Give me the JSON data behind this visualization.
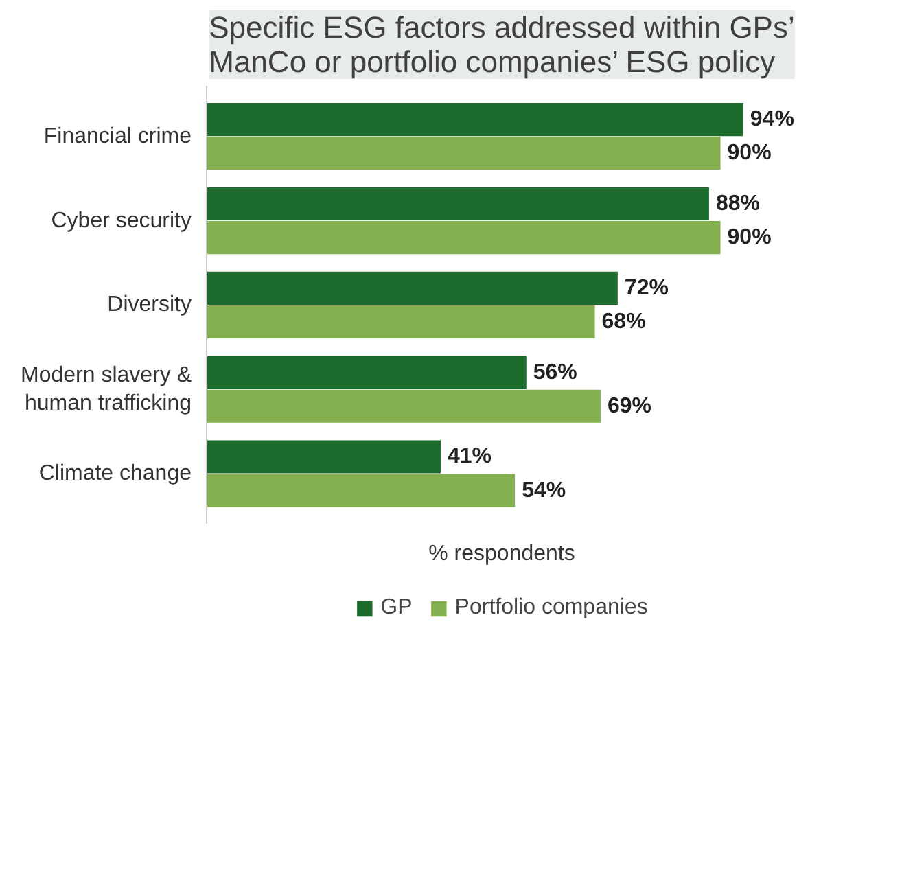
{
  "chart_data": {
    "type": "bar",
    "orientation": "horizontal",
    "title": "Specific ESG factors addressed within GPs’ ManCo or portfolio companies’ ESG policy",
    "xlabel": "% respondents",
    "categories": [
      "Financial crime",
      "Cyber security",
      "Diversity",
      "Modern slavery & human trafficking",
      "Climate change"
    ],
    "series": [
      {
        "name": "GP",
        "color": "#1e6b2e",
        "values": [
          94,
          88,
          72,
          56,
          41
        ],
        "value_labels": [
          "94%",
          "88%",
          "72%",
          "56%",
          "41%"
        ]
      },
      {
        "name": "Portfolio companies",
        "color": "#84b050",
        "values": [
          90,
          90,
          68,
          69,
          54
        ],
        "value_labels": [
          "90%",
          "90%",
          "68%",
          "69%",
          "54%"
        ]
      }
    ],
    "tick_labels": "y",
    "grid": false,
    "legend": "bottom"
  }
}
